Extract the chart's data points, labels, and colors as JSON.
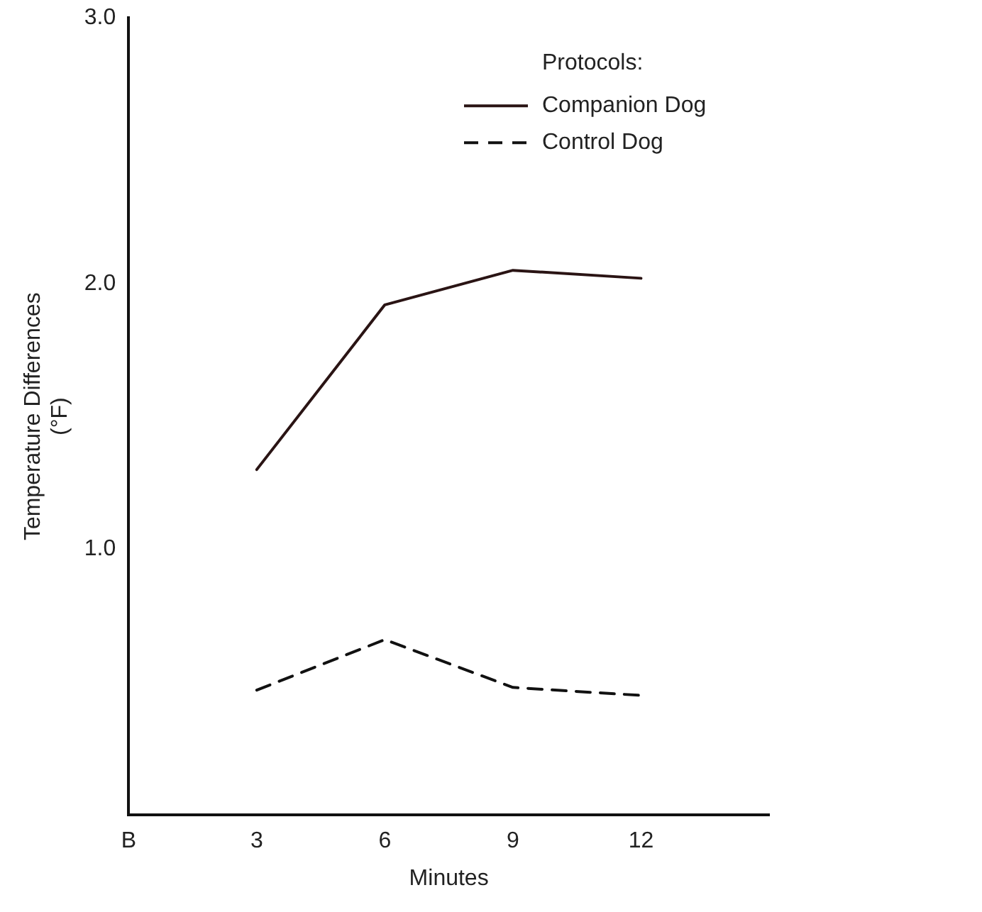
{
  "chart_data": {
    "type": "line",
    "xlabel": "Minutes",
    "ylabel": "Temperature Differences\n(°F)",
    "legend_title": "Protocols:",
    "legend": "top right",
    "grid": false,
    "marker": "none",
    "x": [
      3,
      6,
      9,
      12
    ],
    "xlim": [
      0,
      15
    ],
    "xticks": [
      {
        "value": 0,
        "label": "B"
      },
      3,
      6,
      9,
      12
    ],
    "ylim": [
      0,
      3
    ],
    "yticks": [
      {
        "value": 0,
        "label": null
      },
      {
        "value": 1,
        "label": "1.0"
      },
      {
        "value": 2,
        "label": "2.0"
      },
      {
        "value": 3,
        "label": "3.0"
      }
    ],
    "series": [
      {
        "name": "Companion Dog",
        "color": "#2a1414",
        "line_style": "solid",
        "values": [
          1.3,
          1.92,
          2.05,
          2.02
        ]
      },
      {
        "name": "Control Dog",
        "color": "#111111",
        "line_style": "dashed",
        "values": [
          0.47,
          0.66,
          0.48,
          0.45
        ]
      }
    ]
  }
}
